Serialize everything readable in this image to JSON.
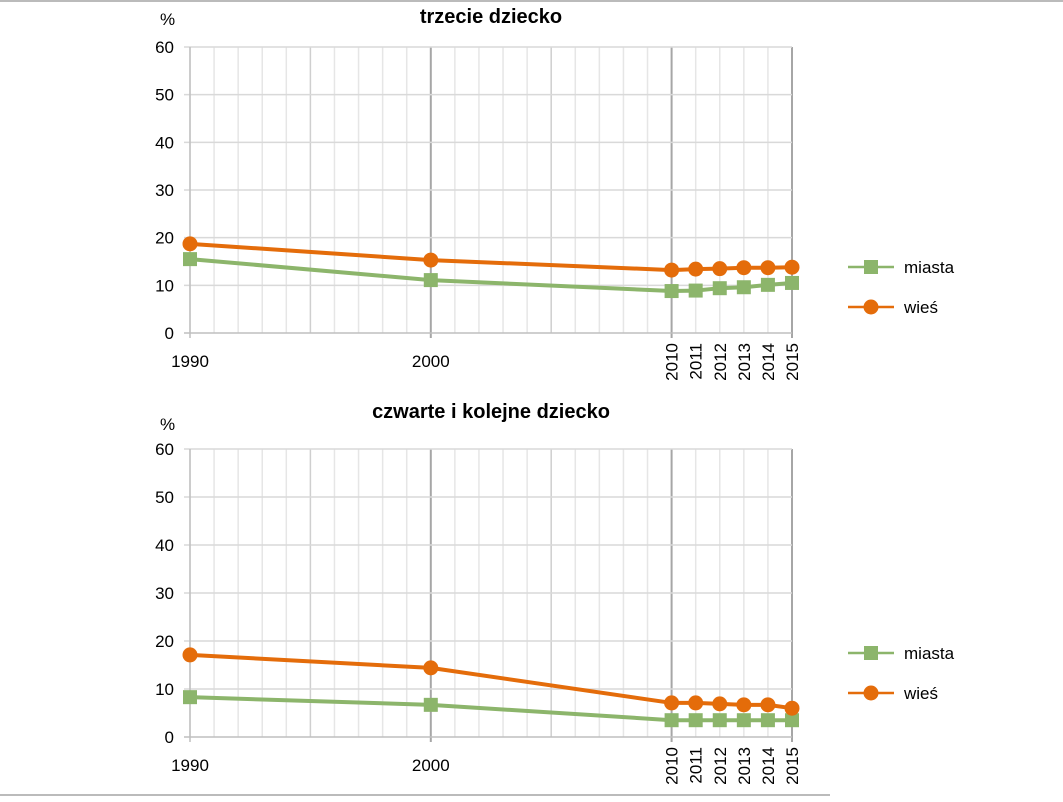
{
  "chart_data": [
    {
      "type": "line",
      "title": "trzecie dziecko",
      "ylabel": "%",
      "xlabel": "",
      "ylim": [
        0,
        60
      ],
      "yticks": [
        "0",
        "10",
        "20",
        "30",
        "40",
        "50",
        "60"
      ],
      "x": [
        1990,
        2000,
        2010,
        2011,
        2012,
        2013,
        2014,
        2015
      ],
      "xticks": [
        "1990",
        "2000",
        "2010",
        "2011",
        "2012",
        "2013",
        "2014",
        "2015"
      ],
      "grid": true,
      "legend": "right",
      "series": [
        {
          "name": "miasta",
          "color": "#8cb56b",
          "marker": "square",
          "values": [
            15.5,
            11.1,
            8.8,
            8.9,
            9.4,
            9.6,
            10.1,
            10.5
          ]
        },
        {
          "name": "wieś",
          "color": "#e46c0a",
          "marker": "circle",
          "values": [
            18.7,
            15.3,
            13.2,
            13.4,
            13.5,
            13.7,
            13.7,
            13.8
          ]
        }
      ]
    },
    {
      "type": "line",
      "title": "czwarte i kolejne dziecko",
      "ylabel": "%",
      "xlabel": "",
      "ylim": [
        0,
        60
      ],
      "yticks": [
        "0",
        "10",
        "20",
        "30",
        "40",
        "50",
        "60"
      ],
      "x": [
        1990,
        2000,
        2010,
        2011,
        2012,
        2013,
        2014,
        2015
      ],
      "xticks": [
        "1990",
        "2000",
        "2010",
        "2011",
        "2012",
        "2013",
        "2014",
        "2015"
      ],
      "grid": true,
      "legend": "right",
      "series": [
        {
          "name": "miasta",
          "color": "#8cb56b",
          "marker": "square",
          "values": [
            8.3,
            6.7,
            3.5,
            3.5,
            3.5,
            3.5,
            3.5,
            3.5
          ]
        },
        {
          "name": "wieś",
          "color": "#e46c0a",
          "marker": "circle",
          "values": [
            17.1,
            14.4,
            7.1,
            7.1,
            6.9,
            6.7,
            6.7,
            6.0
          ]
        }
      ]
    }
  ]
}
